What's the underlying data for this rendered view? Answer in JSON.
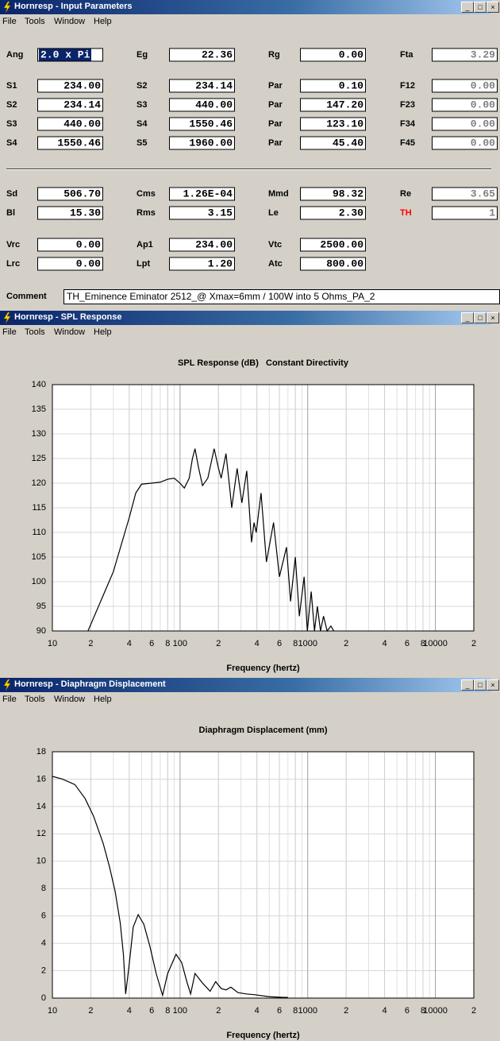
{
  "windows": [
    {
      "title": "Hornresp - Input Parameters",
      "menu": [
        "File",
        "Tools",
        "Window",
        "Help"
      ]
    },
    {
      "title": "Hornresp - SPL Response",
      "menu": [
        "File",
        "Tools",
        "Window",
        "Help"
      ]
    },
    {
      "title": "Hornresp - Diaphragm Displacement",
      "menu": [
        "File",
        "Tools",
        "Window",
        "Help"
      ]
    }
  ],
  "input": {
    "rows": [
      [
        {
          "label": "Ang",
          "value": "2.0 x Pi"
        },
        {
          "label": "Eg",
          "value": "22.36"
        },
        {
          "label": "Rg",
          "value": "0.00"
        },
        {
          "label": "Fta",
          "value": "3.29"
        }
      ],
      [
        {
          "label": "S1",
          "value": "234.00"
        },
        {
          "label": "S2",
          "value": "234.14"
        },
        {
          "label": "Par",
          "value": "0.10"
        },
        {
          "label": "F12",
          "value": "0.00"
        }
      ],
      [
        {
          "label": "S2",
          "value": "234.14"
        },
        {
          "label": "S3",
          "value": "440.00"
        },
        {
          "label": "Par",
          "value": "147.20"
        },
        {
          "label": "F23",
          "value": "0.00"
        }
      ],
      [
        {
          "label": "S3",
          "value": "440.00"
        },
        {
          "label": "S4",
          "value": "1550.46"
        },
        {
          "label": "Par",
          "value": "123.10"
        },
        {
          "label": "F34",
          "value": "0.00"
        }
      ],
      [
        {
          "label": "S4",
          "value": "1550.46"
        },
        {
          "label": "S5",
          "value": "1960.00"
        },
        {
          "label": "Par",
          "value": "45.40"
        },
        {
          "label": "F45",
          "value": "0.00"
        }
      ],
      [
        {
          "label": "Sd",
          "value": "506.70"
        },
        {
          "label": "Cms",
          "value": "1.26E-04"
        },
        {
          "label": "Mmd",
          "value": "98.32"
        },
        {
          "label": "Re",
          "value": "3.65"
        }
      ],
      [
        {
          "label": "Bl",
          "value": "15.30"
        },
        {
          "label": "Rms",
          "value": "3.15"
        },
        {
          "label": "Le",
          "value": "2.30"
        },
        {
          "label": "TH",
          "value": "1"
        }
      ],
      [
        {
          "label": "Vrc",
          "value": "0.00"
        },
        {
          "label": "Ap1",
          "value": "234.00"
        },
        {
          "label": "Vtc",
          "value": "2500.00"
        }
      ],
      [
        {
          "label": "Lrc",
          "value": "0.00"
        },
        {
          "label": "Lpt",
          "value": "1.20"
        },
        {
          "label": "Atc",
          "value": "800.00"
        }
      ]
    ],
    "comment_label": "Comment",
    "comment": "TH_Eminence Eminator 2512_@ Xmax=6mm / 100W into 5 Ohms_PA_2"
  },
  "chart_data": [
    {
      "type": "line",
      "title": "SPL Response (dB)   Constant Directivity",
      "xlabel": "Frequency (hertz)",
      "xscale": "log",
      "grid": true,
      "color": "#000000",
      "x": [
        19,
        30,
        40,
        45,
        50,
        60,
        70,
        80,
        90,
        100,
        108,
        118,
        125,
        131,
        140,
        150,
        165,
        185,
        200,
        210,
        229,
        245,
        254,
        280,
        305,
        333,
        363,
        380,
        395,
        431,
        475,
        540,
        600,
        682,
        734,
        800,
        860,
        937,
        993,
        1065,
        1130,
        1190,
        1260,
        1330,
        1420,
        1520,
        1600
      ],
      "values": [
        90,
        102,
        113,
        118,
        119.8,
        120,
        120.2,
        120.8,
        121,
        120,
        119,
        121,
        125,
        127,
        123,
        119.5,
        121,
        127,
        123,
        121,
        126,
        119,
        115,
        123,
        116,
        122.5,
        108,
        112,
        110,
        118,
        104,
        112,
        101,
        107,
        96,
        105,
        93,
        101,
        90,
        98,
        90,
        95,
        90,
        93,
        90,
        91,
        90
      ],
      "xlim": [
        10,
        20000
      ],
      "xticks": [
        10,
        {
          "value": 20,
          "label": "2"
        },
        {
          "value": 40,
          "label": "4"
        },
        {
          "value": 60,
          "label": "6"
        },
        {
          "value": 80,
          "label": "8"
        },
        100,
        {
          "value": 200,
          "label": "2"
        },
        {
          "value": 400,
          "label": "4"
        },
        {
          "value": 600,
          "label": "6"
        },
        {
          "value": 800,
          "label": "8"
        },
        1000,
        {
          "value": 2000,
          "label": "2"
        },
        {
          "value": 4000,
          "label": "4"
        },
        {
          "value": 6000,
          "label": "6"
        },
        {
          "value": 8000,
          "label": "8"
        },
        10000,
        {
          "value": 20000,
          "label": "2"
        }
      ],
      "ylim": [
        90,
        140
      ],
      "yticks": [
        90,
        95,
        100,
        105,
        110,
        115,
        120,
        125,
        130,
        135,
        140
      ]
    },
    {
      "type": "line",
      "title": "Diaphragm Displacement (mm)",
      "xlabel": "Frequency (hertz)",
      "xscale": "log",
      "grid": true,
      "color": "#000000",
      "x": [
        10,
        12,
        15,
        18,
        21,
        25,
        28,
        31,
        34,
        36,
        37.5,
        40,
        43,
        47,
        52,
        58,
        65,
        73,
        80,
        93,
        103,
        113,
        121,
        131,
        150,
        172,
        190,
        210,
        229,
        250,
        284,
        330,
        380,
        500,
        640,
        700
      ],
      "values": [
        16.2,
        16,
        15.6,
        14.6,
        13.3,
        11.3,
        9.6,
        7.8,
        5.5,
        3.2,
        0.3,
        2.5,
        5.2,
        6.1,
        5.4,
        3.8,
        1.8,
        0.2,
        1.8,
        3.2,
        2.6,
        1.2,
        0.3,
        1.8,
        1.1,
        0.5,
        1.2,
        0.7,
        0.6,
        0.8,
        0.4,
        0.3,
        0.25,
        0.1,
        0.05,
        0.05
      ],
      "xlim": [
        10,
        20000
      ],
      "xticks": [
        10,
        {
          "value": 20,
          "label": "2"
        },
        {
          "value": 40,
          "label": "4"
        },
        {
          "value": 60,
          "label": "6"
        },
        {
          "value": 80,
          "label": "8"
        },
        100,
        {
          "value": 200,
          "label": "2"
        },
        {
          "value": 400,
          "label": "4"
        },
        {
          "value": 600,
          "label": "6"
        },
        {
          "value": 800,
          "label": "8"
        },
        1000,
        {
          "value": 2000,
          "label": "2"
        },
        {
          "value": 4000,
          "label": "4"
        },
        {
          "value": 6000,
          "label": "6"
        },
        {
          "value": 8000,
          "label": "8"
        },
        10000,
        {
          "value": 20000,
          "label": "2"
        }
      ],
      "ylim": [
        0,
        18
      ],
      "yticks": [
        0,
        2,
        4,
        6,
        8,
        10,
        12,
        14,
        16,
        18
      ]
    }
  ]
}
